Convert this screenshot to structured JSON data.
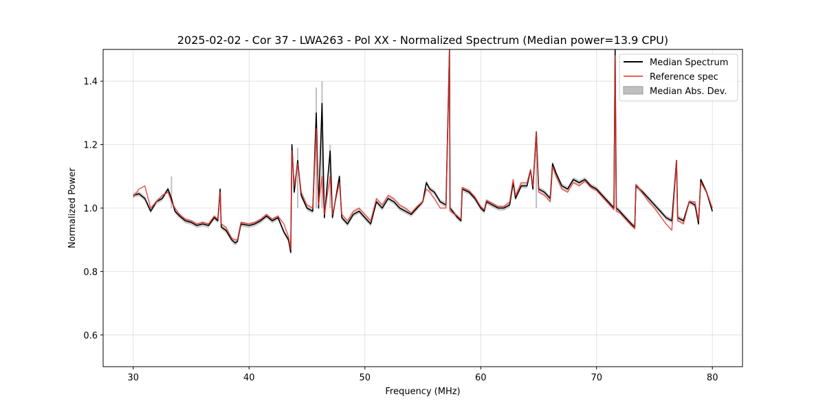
{
  "chart_data": {
    "type": "line",
    "title": "2025-02-02 - Cor 37 - LWA263 - Pol XX - Normalized Spectrum (Median power=13.9 CPU)",
    "xlabel": "Frequency (MHz)",
    "ylabel": "Normalized Power",
    "xlim": [
      27.4,
      82.6
    ],
    "ylim": [
      0.5,
      1.5
    ],
    "x_ticks": [
      30,
      40,
      50,
      60,
      70,
      80
    ],
    "x_tick_labels": [
      "30",
      "40",
      "50",
      "60",
      "70",
      "80"
    ],
    "y_ticks": [
      0.6,
      0.8,
      1.0,
      1.2,
      1.4
    ],
    "y_tick_labels": [
      "0.6",
      "0.8",
      "1.0",
      "1.2",
      "1.4"
    ],
    "grid": true,
    "legend_position": "top-right",
    "series": [
      {
        "name": "Median Spectrum",
        "color": "#000000",
        "points": [
          [
            30.0,
            1.04
          ],
          [
            30.5,
            1.045
          ],
          [
            31.0,
            1.03
          ],
          [
            31.5,
            0.99
          ],
          [
            32.0,
            1.02
          ],
          [
            32.5,
            1.03
          ],
          [
            33.0,
            1.06
          ],
          [
            33.3,
            1.03
          ],
          [
            33.6,
            0.99
          ],
          [
            34.0,
            0.975
          ],
          [
            34.5,
            0.96
          ],
          [
            35.0,
            0.955
          ],
          [
            35.5,
            0.945
          ],
          [
            36.0,
            0.95
          ],
          [
            36.5,
            0.945
          ],
          [
            37.0,
            0.97
          ],
          [
            37.3,
            0.96
          ],
          [
            37.5,
            1.06
          ],
          [
            37.6,
            0.94
          ],
          [
            38.0,
            0.93
          ],
          [
            38.5,
            0.9
          ],
          [
            38.8,
            0.89
          ],
          [
            39.0,
            0.895
          ],
          [
            39.3,
            0.95
          ],
          [
            40.0,
            0.945
          ],
          [
            40.5,
            0.95
          ],
          [
            41.0,
            0.96
          ],
          [
            41.5,
            0.975
          ],
          [
            42.0,
            0.96
          ],
          [
            42.5,
            0.97
          ],
          [
            43.0,
            0.925
          ],
          [
            43.4,
            0.9
          ],
          [
            43.6,
            0.86
          ],
          [
            43.7,
            1.2
          ],
          [
            43.9,
            1.05
          ],
          [
            44.2,
            1.15
          ],
          [
            44.5,
            1.04
          ],
          [
            45.0,
            1.0
          ],
          [
            45.5,
            0.99
          ],
          [
            45.8,
            1.3
          ],
          [
            46.0,
            1.0
          ],
          [
            46.3,
            1.33
          ],
          [
            46.5,
            0.97
          ],
          [
            47.0,
            1.18
          ],
          [
            47.2,
            0.97
          ],
          [
            47.8,
            1.1
          ],
          [
            48.0,
            0.97
          ],
          [
            48.5,
            0.95
          ],
          [
            49.0,
            0.98
          ],
          [
            49.5,
            0.99
          ],
          [
            50.0,
            0.97
          ],
          [
            50.5,
            0.95
          ],
          [
            51.0,
            1.02
          ],
          [
            51.5,
            1.0
          ],
          [
            52.0,
            1.03
          ],
          [
            52.5,
            1.02
          ],
          [
            53.0,
            1.0
          ],
          [
            53.5,
            0.99
          ],
          [
            54.0,
            0.98
          ],
          [
            54.5,
            1.0
          ],
          [
            55.0,
            1.02
          ],
          [
            55.3,
            1.08
          ],
          [
            55.6,
            1.06
          ],
          [
            56.0,
            1.05
          ],
          [
            56.5,
            1.02
          ],
          [
            57.0,
            1.01
          ],
          [
            57.3,
            1.5
          ],
          [
            57.35,
            1.0
          ],
          [
            58.0,
            0.97
          ],
          [
            58.3,
            0.96
          ],
          [
            58.4,
            1.06
          ],
          [
            59.0,
            1.05
          ],
          [
            59.5,
            1.03
          ],
          [
            60.0,
            1.0
          ],
          [
            60.3,
            0.99
          ],
          [
            60.5,
            1.02
          ],
          [
            61.0,
            1.01
          ],
          [
            61.5,
            1.0
          ],
          [
            62.0,
            1.0
          ],
          [
            62.5,
            1.01
          ],
          [
            62.8,
            1.08
          ],
          [
            63.0,
            1.03
          ],
          [
            63.5,
            1.07
          ],
          [
            64.0,
            1.07
          ],
          [
            64.3,
            1.12
          ],
          [
            64.5,
            1.06
          ],
          [
            64.8,
            1.24
          ],
          [
            65.0,
            1.06
          ],
          [
            65.5,
            1.05
          ],
          [
            66.0,
            1.03
          ],
          [
            66.2,
            1.14
          ],
          [
            66.5,
            1.11
          ],
          [
            67.0,
            1.07
          ],
          [
            67.5,
            1.06
          ],
          [
            68.0,
            1.09
          ],
          [
            68.5,
            1.08
          ],
          [
            69.0,
            1.09
          ],
          [
            69.5,
            1.07
          ],
          [
            70.0,
            1.06
          ],
          [
            70.5,
            1.04
          ],
          [
            71.0,
            1.02
          ],
          [
            71.5,
            1.0
          ],
          [
            71.6,
            1.5
          ],
          [
            71.7,
            1.0
          ],
          [
            72.0,
            0.99
          ],
          [
            72.5,
            0.97
          ],
          [
            73.0,
            0.95
          ],
          [
            73.3,
            0.94
          ],
          [
            73.4,
            1.07
          ],
          [
            74.0,
            1.05
          ],
          [
            74.5,
            1.03
          ],
          [
            75.0,
            1.01
          ],
          [
            75.5,
            0.99
          ],
          [
            76.0,
            0.97
          ],
          [
            76.5,
            0.96
          ],
          [
            76.9,
            1.15
          ],
          [
            77.0,
            0.97
          ],
          [
            77.5,
            0.96
          ],
          [
            78.0,
            1.02
          ],
          [
            78.5,
            1.01
          ],
          [
            78.8,
            0.95
          ],
          [
            79.0,
            1.09
          ],
          [
            79.5,
            1.05
          ],
          [
            80.0,
            0.99
          ]
        ]
      },
      {
        "name": "Reference spec",
        "color": "#e8332e",
        "points": [
          [
            30.0,
            1.035
          ],
          [
            30.5,
            1.06
          ],
          [
            31.0,
            1.07
          ],
          [
            31.5,
            1.0
          ],
          [
            32.0,
            1.02
          ],
          [
            32.5,
            1.04
          ],
          [
            33.0,
            1.05
          ],
          [
            33.3,
            1.02
          ],
          [
            33.6,
            1.0
          ],
          [
            34.0,
            0.98
          ],
          [
            34.5,
            0.965
          ],
          [
            35.0,
            0.96
          ],
          [
            35.5,
            0.95
          ],
          [
            36.0,
            0.955
          ],
          [
            36.5,
            0.95
          ],
          [
            37.0,
            0.975
          ],
          [
            37.3,
            0.965
          ],
          [
            37.5,
            1.05
          ],
          [
            37.6,
            0.95
          ],
          [
            38.0,
            0.94
          ],
          [
            38.5,
            0.905
          ],
          [
            38.8,
            0.9
          ],
          [
            39.0,
            0.9
          ],
          [
            39.3,
            0.955
          ],
          [
            40.0,
            0.95
          ],
          [
            40.5,
            0.955
          ],
          [
            41.0,
            0.965
          ],
          [
            41.5,
            0.98
          ],
          [
            42.0,
            0.965
          ],
          [
            42.5,
            0.975
          ],
          [
            43.0,
            0.95
          ],
          [
            43.4,
            0.91
          ],
          [
            43.6,
            0.87
          ],
          [
            43.7,
            1.18
          ],
          [
            43.9,
            1.07
          ],
          [
            44.2,
            1.14
          ],
          [
            44.5,
            1.05
          ],
          [
            45.0,
            1.01
          ],
          [
            45.5,
            1.0
          ],
          [
            45.8,
            1.25
          ],
          [
            46.0,
            1.01
          ],
          [
            46.3,
            1.1
          ],
          [
            46.5,
            0.98
          ],
          [
            47.0,
            1.1
          ],
          [
            47.2,
            0.98
          ],
          [
            47.8,
            1.08
          ],
          [
            48.0,
            0.98
          ],
          [
            48.5,
            0.96
          ],
          [
            49.0,
            0.99
          ],
          [
            49.5,
            1.0
          ],
          [
            50.0,
            0.98
          ],
          [
            50.5,
            0.96
          ],
          [
            51.0,
            1.03
          ],
          [
            51.5,
            1.01
          ],
          [
            52.0,
            1.04
          ],
          [
            52.5,
            1.03
          ],
          [
            53.0,
            1.01
          ],
          [
            53.5,
            1.0
          ],
          [
            54.0,
            0.985
          ],
          [
            54.5,
            1.005
          ],
          [
            55.0,
            1.02
          ],
          [
            55.3,
            1.06
          ],
          [
            55.6,
            1.05
          ],
          [
            56.0,
            1.03
          ],
          [
            56.5,
            1.0
          ],
          [
            57.0,
            1.0
          ],
          [
            57.3,
            1.5
          ],
          [
            57.35,
            0.99
          ],
          [
            58.0,
            0.975
          ],
          [
            58.3,
            0.965
          ],
          [
            58.4,
            1.065
          ],
          [
            59.0,
            1.055
          ],
          [
            59.5,
            1.035
          ],
          [
            60.0,
            1.005
          ],
          [
            60.3,
            0.995
          ],
          [
            60.5,
            1.025
          ],
          [
            61.0,
            1.015
          ],
          [
            61.5,
            1.005
          ],
          [
            62.0,
            1.005
          ],
          [
            62.5,
            1.02
          ],
          [
            62.8,
            1.09
          ],
          [
            63.0,
            1.04
          ],
          [
            63.5,
            1.08
          ],
          [
            64.0,
            1.08
          ],
          [
            64.3,
            1.12
          ],
          [
            64.5,
            1.07
          ],
          [
            64.8,
            1.24
          ],
          [
            65.0,
            1.05
          ],
          [
            65.5,
            1.04
          ],
          [
            66.0,
            1.02
          ],
          [
            66.2,
            1.13
          ],
          [
            66.5,
            1.1
          ],
          [
            67.0,
            1.06
          ],
          [
            67.5,
            1.05
          ],
          [
            68.0,
            1.08
          ],
          [
            68.5,
            1.07
          ],
          [
            69.0,
            1.085
          ],
          [
            69.5,
            1.065
          ],
          [
            70.0,
            1.055
          ],
          [
            70.5,
            1.035
          ],
          [
            71.0,
            1.015
          ],
          [
            71.5,
            0.995
          ],
          [
            71.6,
            1.48
          ],
          [
            71.7,
            0.99
          ],
          [
            72.0,
            0.985
          ],
          [
            72.5,
            0.965
          ],
          [
            73.0,
            0.945
          ],
          [
            73.3,
            0.935
          ],
          [
            73.4,
            1.075
          ],
          [
            74.0,
            1.045
          ],
          [
            74.5,
            1.02
          ],
          [
            75.0,
            1.0
          ],
          [
            75.5,
            0.975
          ],
          [
            76.0,
            0.95
          ],
          [
            76.5,
            0.93
          ],
          [
            76.9,
            1.15
          ],
          [
            77.0,
            0.96
          ],
          [
            77.5,
            0.95
          ],
          [
            78.0,
            1.02
          ],
          [
            78.5,
            1.02
          ],
          [
            78.8,
            0.96
          ],
          [
            79.0,
            1.08
          ],
          [
            79.5,
            1.05
          ],
          [
            80.0,
            1.0
          ]
        ]
      },
      {
        "name": "Median Abs. Dev.",
        "type": "band",
        "color": "#bfbfbf",
        "half_width": 0.008,
        "extra_peaks": [
          [
            45.8,
            1.38
          ],
          [
            46.3,
            1.4
          ],
          [
            47.0,
            1.2
          ],
          [
            44.2,
            1.19
          ],
          [
            33.3,
            1.1
          ],
          [
            64.8,
            1.24
          ]
        ]
      }
    ]
  }
}
